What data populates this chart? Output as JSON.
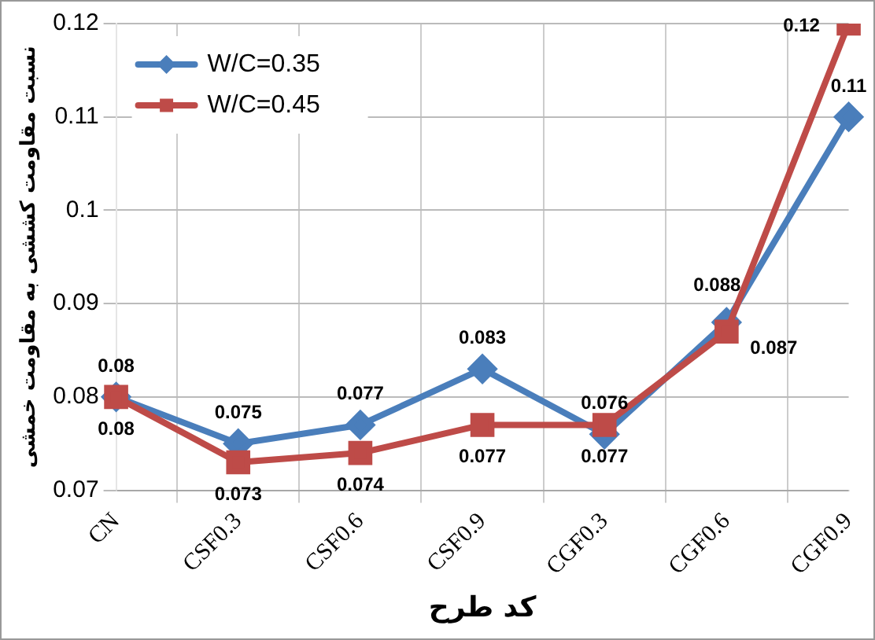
{
  "chart_data": {
    "type": "line",
    "xlabel": "کد طرح",
    "ylabel": "نسبت مقاومت کششی به مقاومت خمشی",
    "categories": [
      "CN",
      "CSF0.3",
      "CSF0.6",
      "CSF0.9",
      "CGF0.3",
      "CGF0.6",
      "CGF0.9"
    ],
    "series": [
      {
        "name": "W/C=0.35",
        "color": "#4a7ebb",
        "marker": "diamond",
        "values": [
          0.08,
          0.075,
          0.077,
          0.083,
          0.076,
          0.088,
          0.11
        ]
      },
      {
        "name": "W/C=0.45",
        "color": "#be4b48",
        "marker": "square",
        "values": [
          0.08,
          0.073,
          0.074,
          0.077,
          0.077,
          0.087,
          0.12
        ]
      }
    ],
    "ylim": [
      0.07,
      0.12
    ],
    "yticks": [
      0.07,
      0.08,
      0.09,
      0.1,
      0.11,
      0.12
    ],
    "grid": true,
    "legend": "top left",
    "data_labels": true,
    "line_style": "solid"
  }
}
